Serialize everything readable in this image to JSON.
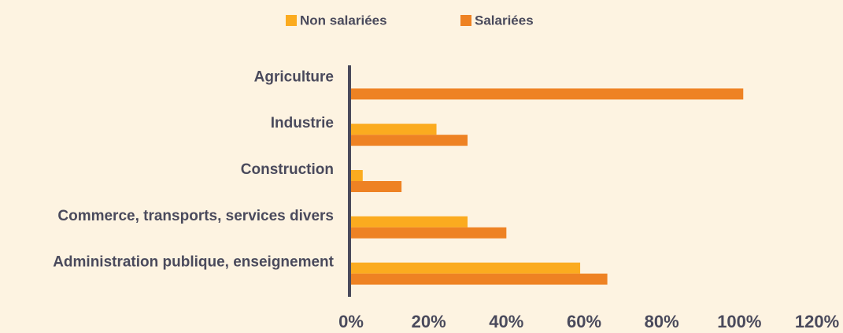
{
  "chart_data": {
    "type": "hbar",
    "categories": [
      "Agriculture",
      "Industrie",
      "Construction",
      "Commerce, transports, services divers",
      "Administration publique, enseignement"
    ],
    "series": [
      {
        "name": "Non salariées",
        "color": "#fbab1f",
        "values": [
          0,
          22,
          3,
          30,
          59
        ]
      },
      {
        "name": "Salariées",
        "color": "#ee8223",
        "values": [
          101,
          30,
          13,
          40,
          66
        ]
      }
    ],
    "xlim": [
      0,
      120
    ],
    "xticks": [
      {
        "value": 0,
        "label": "0%"
      },
      {
        "value": 20,
        "label": "20%"
      },
      {
        "value": 40,
        "label": "40%"
      },
      {
        "value": 60,
        "label": "60%"
      },
      {
        "value": 80,
        "label": "80%"
      },
      {
        "value": 100,
        "label": "100%"
      },
      {
        "value": 120,
        "label": "120%"
      }
    ],
    "legend": "top"
  }
}
